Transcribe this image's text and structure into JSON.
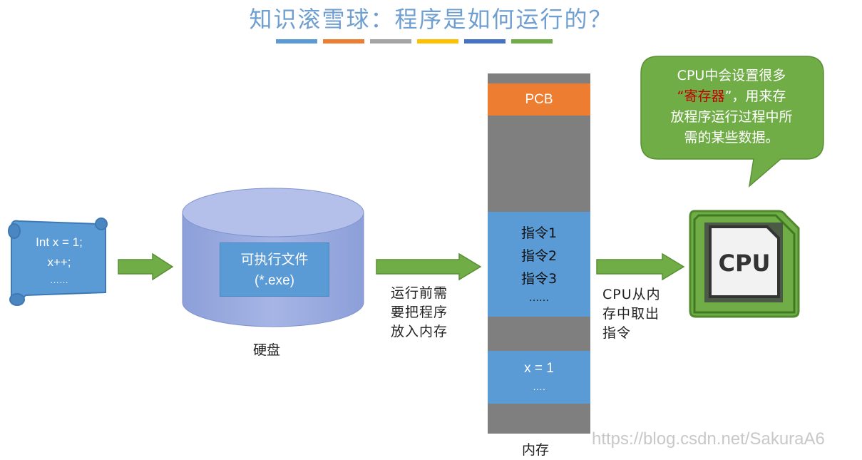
{
  "title": "知识滚雪球：程序是如何运行的？",
  "stripe_colors": [
    "#5b9bd5",
    "#ed7d31",
    "#a5a5a5",
    "#ffc000",
    "#4472c4",
    "#70ad47"
  ],
  "scroll": {
    "lines": [
      "Int x = 1;",
      "x++;",
      "……"
    ]
  },
  "disk": {
    "file_lines": [
      "可执行文件",
      "(*.exe)"
    ],
    "label": "硬盘"
  },
  "load_label_lines": [
    "运行前需",
    "要把程序",
    "放入内存"
  ],
  "memory": {
    "pcb": "PCB",
    "instructions": [
      "指令1",
      "指令2",
      "指令3",
      "……"
    ],
    "data": [
      "x = 1",
      "…."
    ],
    "label": "内存"
  },
  "fetch_label_lines": [
    "CPU从内",
    "存中取出",
    "指令"
  ],
  "bubble": {
    "line1": "CPU中会设置很多",
    "quote_open": "“",
    "highlight": "寄存器",
    "quote_close_rest": "”，用来存",
    "line3": "放程序运行过程中所",
    "line4": "需的某些数据。"
  },
  "cpu_chip": {
    "label": "CPU"
  },
  "watermark": "https://blog.csdn.net/SakuraA6",
  "colors": {
    "arrow": "#70ad47",
    "memory_gray": "#7f7f7f",
    "pcb": "#ed7d31",
    "blue": "#5b9bd5",
    "bubble": "#70ad47",
    "highlight": "#c00000"
  }
}
